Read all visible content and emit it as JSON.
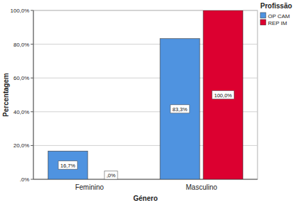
{
  "chart_data": {
    "type": "bar",
    "x_label": "Género",
    "y_label": "Percentagem",
    "legend_title": "Profissão",
    "categories": [
      "Feminino",
      "Masculino"
    ],
    "series": [
      {
        "name": "OP CAM",
        "color": "#4f93e0",
        "values": [
          16.7,
          83.3
        ],
        "value_labels": [
          "16,7%",
          "83,3%"
        ]
      },
      {
        "name": "REP IM",
        "color": "#dc0030",
        "values": [
          0,
          100
        ],
        "value_labels": [
          ",0%",
          "100,0%"
        ]
      }
    ],
    "ylim": [
      0,
      100
    ],
    "yticks": [
      {
        "value": 0,
        "label": ".0%"
      },
      {
        "value": 20,
        "label": "20,0%"
      },
      {
        "value": 40,
        "label": "40,0%"
      },
      {
        "value": 60,
        "label": "60,0%"
      },
      {
        "value": 80,
        "label": "80,0%"
      },
      {
        "value": 100,
        "label": "100,0%"
      }
    ],
    "grid": true,
    "legend": "top-right",
    "data_labels": true
  }
}
